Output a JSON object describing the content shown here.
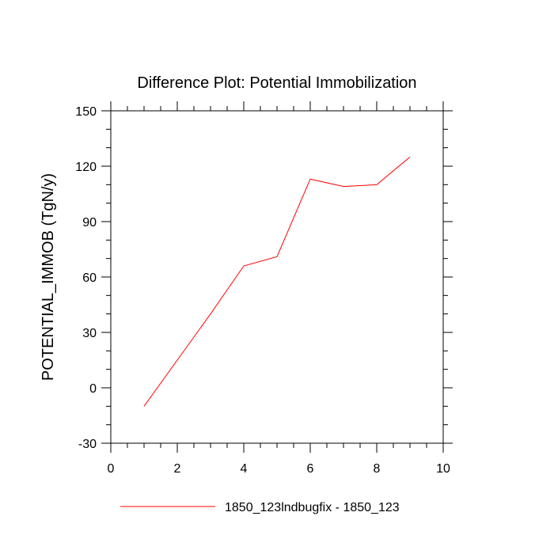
{
  "chart_data": {
    "type": "line",
    "title": "Difference Plot: Potential Immobilization",
    "xlabel": "",
    "ylabel": "POTENTIAL_IMMOB  (TgN/y)",
    "xlim": [
      0,
      10
    ],
    "ylim": [
      -30,
      150
    ],
    "xticks": [
      0,
      2,
      4,
      6,
      8,
      10
    ],
    "yticks": [
      -30,
      0,
      30,
      60,
      90,
      120,
      150
    ],
    "xtick_labels": [
      "0",
      "2",
      "4",
      "6",
      "8",
      "10"
    ],
    "ytick_labels": [
      "-30",
      "0",
      "30",
      "60",
      "90",
      "120",
      "150"
    ],
    "grid": false,
    "legend_position": "bottom",
    "series": [
      {
        "name": "1850_123lndbugfix - 1850_123",
        "color": "#ff0000",
        "x": [
          1,
          2,
          3,
          4,
          5,
          6,
          7,
          8,
          9
        ],
        "y": [
          -10,
          15,
          40,
          66,
          71,
          113,
          109,
          110,
          125
        ]
      }
    ]
  }
}
